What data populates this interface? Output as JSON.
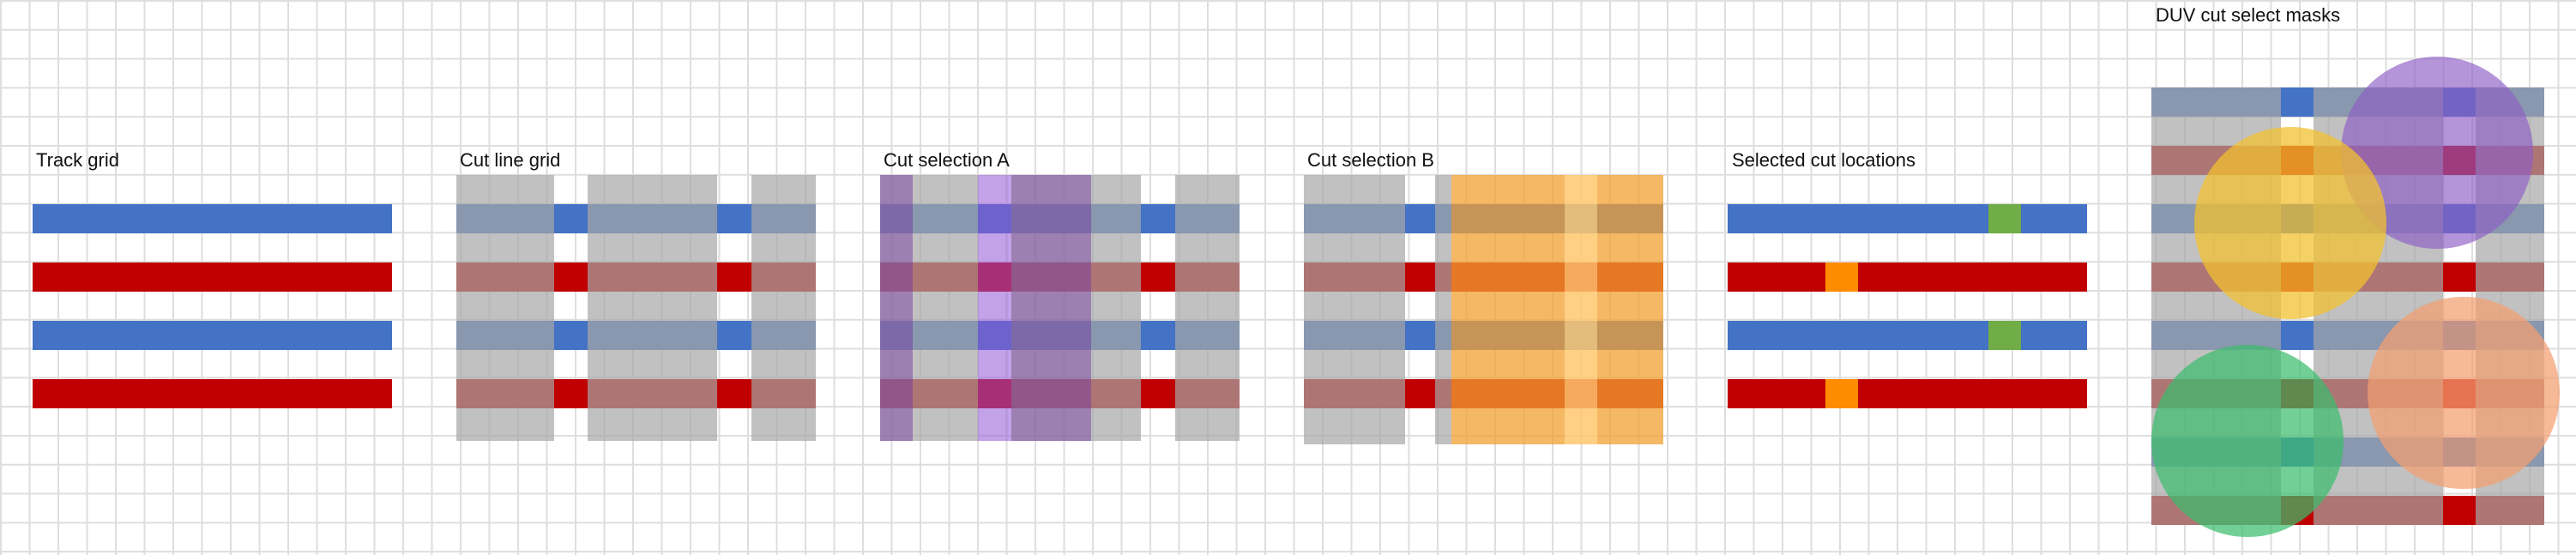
{
  "panels": {
    "track_grid": {
      "title": "Track grid"
    },
    "cut_line_grid": {
      "title": "Cut line grid"
    },
    "cut_selection_a": {
      "title": "Cut selection A"
    },
    "cut_selection_b": {
      "title": "Cut selection B"
    },
    "selected_cut_locations": {
      "title": "Selected cut locations"
    },
    "duv_cut_select_masks": {
      "title": "DUV cut select masks"
    }
  },
  "colors": {
    "track_blue": "#4472c4",
    "track_red": "#c00000",
    "cut_line_gray": "#a6a6a6",
    "selection_a_purple": "#7030a0",
    "selection_b_orange": "#f4a030",
    "selected_cut_green": "#70ad47",
    "selected_cut_orange": "#ff8c00",
    "mask_purple": "#8e5cc4",
    "mask_yellow": "#f2c030",
    "mask_peach": "#f4a070",
    "mask_green": "#3cbc6c"
  }
}
